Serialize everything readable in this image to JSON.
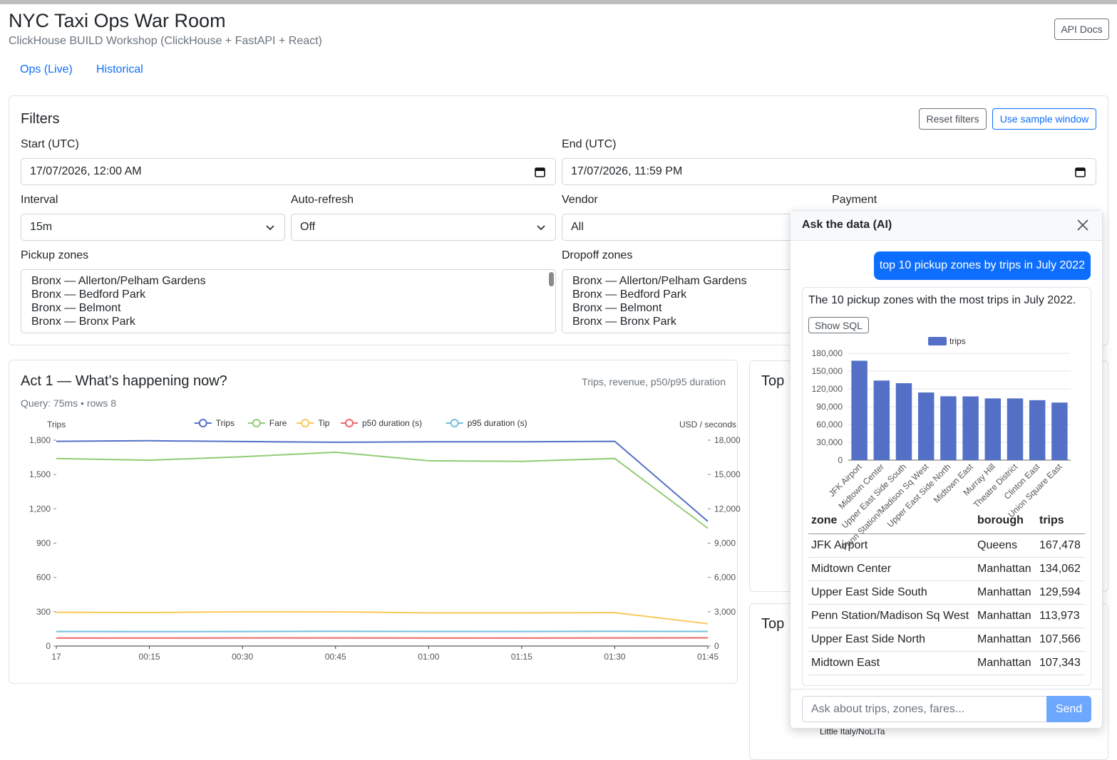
{
  "header": {
    "title": "NYC Taxi Ops War Room",
    "subtitle": "ClickHouse BUILD Workshop (ClickHouse + FastAPI + React)",
    "api_docs": "API Docs"
  },
  "tabs": [
    "Ops (Live)",
    "Historical"
  ],
  "filters": {
    "title": "Filters",
    "reset": "Reset filters",
    "sample": "Use sample window",
    "start": {
      "label": "Start (UTC)",
      "value": "17/07/2026, 12:00 AM"
    },
    "end": {
      "label": "End (UTC)",
      "value": "17/07/2026, 11:59 PM"
    },
    "interval": {
      "label": "Interval",
      "value": "15m"
    },
    "auto_refresh": {
      "label": "Auto-refresh",
      "value": "Off"
    },
    "vendor": {
      "label": "Vendor",
      "value": "All"
    },
    "payment": {
      "label": "Payment"
    },
    "pickup": {
      "label": "Pickup zones",
      "options": [
        "Bronx — Allerton/Pelham Gardens",
        "Bronx — Bedford Park",
        "Bronx — Belmont",
        "Bronx — Bronx Park"
      ]
    },
    "dropoff": {
      "label": "Dropoff zones",
      "options": [
        "Bronx — Allerton/Pelham Gardens",
        "Bronx — Bedford Park",
        "Bronx — Belmont",
        "Bronx — Bronx Park"
      ]
    }
  },
  "act1": {
    "title": "Act 1 — What’s happening now?",
    "note": "Trips, revenue, p50/p95 duration",
    "query": "Query: 75ms • rows 8",
    "chart_data": {
      "type": "line",
      "ylabel": "Trips",
      "y2label": "USD / seconds",
      "categories": [
        "17",
        "00:15",
        "00:30",
        "00:45",
        "01:00",
        "01:15",
        "01:30",
        "01:45"
      ],
      "ylim": [
        0,
        1800
      ],
      "yticks": [
        0,
        300,
        600,
        900,
        {
          "value": 1200,
          "label": "1,200"
        },
        {
          "value": 1500,
          "label": "1,500"
        },
        {
          "value": 1800,
          "label": "1,800"
        }
      ],
      "y2lim": [
        0,
        18000
      ],
      "y2ticks": [
        0,
        {
          "value": 3000,
          "label": "3,000"
        },
        {
          "value": 6000,
          "label": "6,000"
        },
        {
          "value": 9000,
          "label": "9,000"
        },
        {
          "value": 12000,
          "label": "12,000"
        },
        {
          "value": 15000,
          "label": "15,000"
        },
        {
          "value": 18000,
          "label": "18,000"
        }
      ],
      "series": [
        {
          "name": "Trips",
          "color": "#5470c6",
          "values": [
            1790,
            1795,
            1788,
            1782,
            1786,
            1786,
            1790,
            1090
          ]
        },
        {
          "name": "Fare",
          "color": "#91cc75",
          "axis": "y2",
          "values": [
            16400,
            16250,
            16550,
            16950,
            16200,
            16150,
            16400,
            10300
          ]
        },
        {
          "name": "Tip",
          "color": "#fac858",
          "axis": "y2",
          "values": [
            2950,
            2930,
            3000,
            2990,
            2900,
            2900,
            2920,
            1950
          ]
        },
        {
          "name": "p50 duration (s)",
          "color": "#ee6666",
          "axis": "y2",
          "values": [
            700,
            700,
            710,
            710,
            700,
            700,
            710,
            720
          ]
        },
        {
          "name": "p95 duration (s)",
          "color": "#73c0de",
          "axis": "y2",
          "values": [
            1270,
            1260,
            1270,
            1290,
            1280,
            1270,
            1290,
            1280
          ]
        }
      ]
    }
  },
  "top_panels": [
    "Top",
    "Top"
  ],
  "top_panel_label": "Little Italy/NoLiTa",
  "ai": {
    "title": "Ask the data (AI)",
    "question": "top 10 pickup zones by trips in July 2022",
    "answer": "The 10 pickup zones with the most trips in July 2022.",
    "show_sql": "Show SQL",
    "chart_data": {
      "type": "bar",
      "series": [
        {
          "name": "trips",
          "color": "#5470c6",
          "values": [
            167478,
            134062,
            129594,
            113973,
            107566,
            107343,
            104000,
            104000,
            101000,
            97000
          ]
        }
      ],
      "categories": [
        "JFK Airport",
        "Midtown Center",
        "Upper East Side South",
        "Penn Station/Madison Sq West",
        "Upper East Side North",
        "Midtown East",
        "Murray Hill",
        "Theatre District",
        "Clinton East",
        "Union Square East"
      ],
      "ylim": [
        0,
        180000
      ],
      "yticks": [
        0,
        {
          "value": 30000,
          "label": "30,000"
        },
        {
          "value": 60000,
          "label": "60,000"
        },
        {
          "value": 90000,
          "label": "90,000"
        },
        {
          "value": 120000,
          "label": "120,000"
        },
        {
          "value": 150000,
          "label": "150,000"
        },
        {
          "value": 180000,
          "label": "180,000"
        }
      ],
      "grid": true
    },
    "table": {
      "columns": [
        "zone",
        "borough",
        "trips"
      ],
      "rows": [
        [
          "JFK Airport",
          "Queens",
          "167,478"
        ],
        [
          "Midtown Center",
          "Manhattan",
          "134,062"
        ],
        [
          "Upper East Side South",
          "Manhattan",
          "129,594"
        ],
        [
          "Penn Station/Madison Sq West",
          "Manhattan",
          "113,973"
        ],
        [
          "Upper East Side North",
          "Manhattan",
          "107,566"
        ],
        [
          "Midtown East",
          "Manhattan",
          "107,343"
        ]
      ]
    },
    "input_placeholder": "Ask about trips, zones, fares...",
    "send": "Send"
  }
}
